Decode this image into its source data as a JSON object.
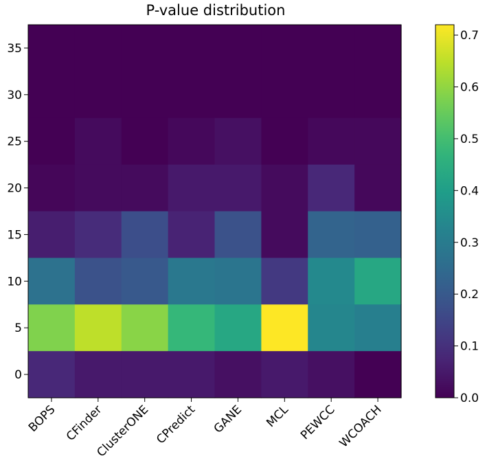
{
  "chart_data": {
    "type": "heatmap",
    "title": "P-value distribution",
    "xlabel": "",
    "ylabel": "",
    "categories": [
      "BOPS",
      "CFinder",
      "ClusterONE",
      "CPredict",
      "GANE",
      "MCL",
      "PEWCC",
      "WCOACH"
    ],
    "y_row_centers": [
      35,
      30,
      25,
      20,
      15,
      10,
      5,
      0
    ],
    "y_ticks": [
      35,
      30,
      25,
      20,
      15,
      10,
      5,
      0
    ],
    "ylim": [
      -2.5,
      37.5
    ],
    "colormap": "viridis",
    "color_range": [
      0.0,
      0.72
    ],
    "colorbar_ticks": [
      "0.7",
      "0.6",
      "0.5",
      "0.4",
      "0.3",
      "0.2",
      "0.1",
      "0.0"
    ],
    "colorbar_tick_values": [
      0.7,
      0.6,
      0.5,
      0.4,
      0.3,
      0.2,
      0.1,
      0.0
    ],
    "values": [
      [
        0.0,
        0.0,
        0.0,
        0.0,
        0.0,
        0.0,
        0.0,
        0.0
      ],
      [
        0.0,
        0.0,
        0.0,
        0.0,
        0.0,
        0.0,
        0.0,
        0.0
      ],
      [
        0.0,
        0.02,
        0.0,
        0.015,
        0.03,
        0.0,
        0.015,
        0.015
      ],
      [
        0.01,
        0.02,
        0.02,
        0.05,
        0.05,
        0.02,
        0.08,
        0.015
      ],
      [
        0.06,
        0.09,
        0.17,
        0.07,
        0.18,
        0.02,
        0.23,
        0.22
      ],
      [
        0.27,
        0.18,
        0.2,
        0.29,
        0.28,
        0.12,
        0.34,
        0.43
      ],
      [
        0.58,
        0.65,
        0.59,
        0.48,
        0.43,
        0.72,
        0.33,
        0.31
      ],
      [
        0.08,
        0.05,
        0.05,
        0.05,
        0.03,
        0.05,
        0.03,
        0.0
      ]
    ]
  }
}
